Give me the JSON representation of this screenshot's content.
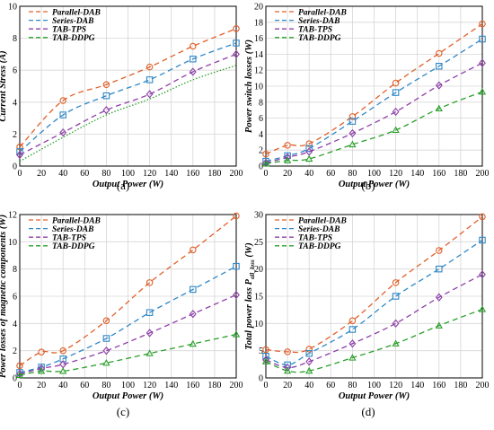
{
  "chart_data": [
    {
      "type": "line",
      "panel_label": "(a)",
      "xlabel": "Output Power (W)",
      "ylabel": "Current Stress (A)",
      "x": [
        0,
        40,
        80,
        120,
        160,
        200
      ],
      "xticks": [
        "0",
        "20",
        "40",
        "60",
        "80",
        "100",
        "120",
        "140",
        "160",
        "180",
        "200"
      ],
      "yticks": [
        "0",
        "2",
        "4",
        "6",
        "8",
        "10"
      ],
      "xlim": [
        0,
        200
      ],
      "ylim": [
        0,
        10
      ],
      "grid": true,
      "legend_position": "top-left",
      "series": [
        {
          "name": "Parallel-DAB",
          "values": [
            1.2,
            4.1,
            5.1,
            6.2,
            7.5,
            8.6
          ],
          "color": "#e0602a",
          "dash": "6,4",
          "marker": "circle"
        },
        {
          "name": "Series-DAB",
          "values": [
            0.9,
            3.2,
            4.4,
            5.4,
            6.7,
            7.7
          ],
          "color": "#2f88c8",
          "dash": "6,4",
          "marker": "square"
        },
        {
          "name": "TAB-TPS",
          "values": [
            0.7,
            2.1,
            3.5,
            4.5,
            5.9,
            7.0
          ],
          "color": "#8e3ea8",
          "dash": "6,4",
          "marker": "diamond"
        },
        {
          "name": "TAB-DDPG",
          "values": [
            0.3,
            1.8,
            3.2,
            4.2,
            5.4,
            6.3
          ],
          "color": "#2aa02a",
          "dash": "6,4",
          "marker": "none"
        }
      ]
    },
    {
      "type": "line",
      "panel_label": "(b)",
      "xlabel": "Output Power (W)",
      "ylabel": "Power switch losses (W)",
      "x": [
        0,
        20,
        40,
        80,
        120,
        160,
        200
      ],
      "xticks": [
        "0",
        "20",
        "40",
        "60",
        "80",
        "100",
        "120",
        "140",
        "160",
        "180",
        "200"
      ],
      "yticks": [
        "0",
        "2",
        "4",
        "6",
        "8",
        "10",
        "12",
        "14",
        "16",
        "18",
        "20"
      ],
      "xlim": [
        0,
        200
      ],
      "ylim": [
        0,
        20
      ],
      "grid": true,
      "legend_position": "top-left",
      "series": [
        {
          "name": "Parallel-DAB",
          "values": [
            1.5,
            2.6,
            2.8,
            6.2,
            10.4,
            14.1,
            17.8
          ],
          "color": "#e0602a",
          "dash": "6,4",
          "marker": "circle"
        },
        {
          "name": "Series-DAB",
          "values": [
            0.6,
            1.3,
            2.2,
            5.6,
            9.2,
            12.5,
            15.9
          ],
          "color": "#2f88c8",
          "dash": "6,4",
          "marker": "square"
        },
        {
          "name": "TAB-TPS",
          "values": [
            0.4,
            1.1,
            1.8,
            4.1,
            6.8,
            10.1,
            12.9
          ],
          "color": "#8e3ea8",
          "dash": "6,4",
          "marker": "diamond"
        },
        {
          "name": "TAB-DDPG",
          "values": [
            0.3,
            0.7,
            0.9,
            2.7,
            4.5,
            7.2,
            9.3
          ],
          "color": "#2aa02a",
          "dash": "6,4",
          "marker": "triangle"
        }
      ]
    },
    {
      "type": "line",
      "panel_label": "(c)",
      "xlabel": "Output Power (W)",
      "ylabel": "Power losses of magnetic components (W)",
      "x": [
        0,
        20,
        40,
        80,
        120,
        160,
        200
      ],
      "xticks": [
        "0",
        "20",
        "40",
        "60",
        "80",
        "100",
        "120",
        "140",
        "160",
        "180",
        "200"
      ],
      "yticks": [
        "0",
        "2",
        "4",
        "6",
        "8",
        "10",
        "12"
      ],
      "xlim": [
        0,
        200
      ],
      "ylim": [
        0,
        12
      ],
      "grid": true,
      "legend_position": "top-left",
      "series": [
        {
          "name": "Parallel-DAB",
          "values": [
            0.9,
            1.9,
            2.0,
            4.2,
            7.0,
            9.4,
            11.9
          ],
          "color": "#e0602a",
          "dash": "6,4",
          "marker": "circle"
        },
        {
          "name": "Series-DAB",
          "values": [
            0.4,
            0.8,
            1.4,
            2.9,
            4.8,
            6.5,
            8.2
          ],
          "color": "#2f88c8",
          "dash": "6,4",
          "marker": "square"
        },
        {
          "name": "TAB-TPS",
          "values": [
            0.3,
            0.7,
            1.0,
            2.0,
            3.3,
            4.7,
            6.1
          ],
          "color": "#8e3ea8",
          "dash": "6,4",
          "marker": "diamond"
        },
        {
          "name": "TAB-DDPG",
          "values": [
            0.2,
            0.5,
            0.5,
            1.1,
            1.8,
            2.5,
            3.2
          ],
          "color": "#2aa02a",
          "dash": "6,4",
          "marker": "triangle"
        }
      ]
    },
    {
      "type": "line",
      "panel_label": "(d)",
      "xlabel": "Output Power (W)",
      "ylabel": "Total power loss",
      "ylabel_symbol": "P",
      "ylabel_subscript": "all_loss",
      "ylabel_unit": "(W)",
      "x": [
        0,
        20,
        40,
        80,
        120,
        160,
        200
      ],
      "xticks": [
        "0",
        "20",
        "40",
        "60",
        "80",
        "100",
        "120",
        "140",
        "160",
        "180",
        "200"
      ],
      "yticks": [
        "0",
        "5",
        "10",
        "15",
        "20",
        "25",
        "30"
      ],
      "xlim": [
        0,
        200
      ],
      "ylim": [
        0,
        30
      ],
      "grid": true,
      "legend_position": "top-left",
      "series": [
        {
          "name": "Parallel-DAB",
          "values": [
            5.2,
            4.8,
            5.3,
            10.5,
            17.5,
            23.4,
            29.6
          ],
          "color": "#e0602a",
          "dash": "6,4",
          "marker": "circle"
        },
        {
          "name": "Series-DAB",
          "values": [
            4.0,
            2.4,
            4.5,
            8.9,
            15.0,
            20.0,
            25.3
          ],
          "color": "#2f88c8",
          "dash": "6,4",
          "marker": "square"
        },
        {
          "name": "TAB-TPS",
          "values": [
            3.3,
            1.9,
            3.0,
            6.3,
            10.0,
            14.8,
            19.0
          ],
          "color": "#8e3ea8",
          "dash": "6,4",
          "marker": "diamond"
        },
        {
          "name": "TAB-DDPG",
          "values": [
            3.0,
            1.3,
            1.3,
            3.7,
            6.3,
            9.6,
            12.6
          ],
          "color": "#2aa02a",
          "dash": "6,4",
          "marker": "triangle"
        }
      ]
    }
  ]
}
